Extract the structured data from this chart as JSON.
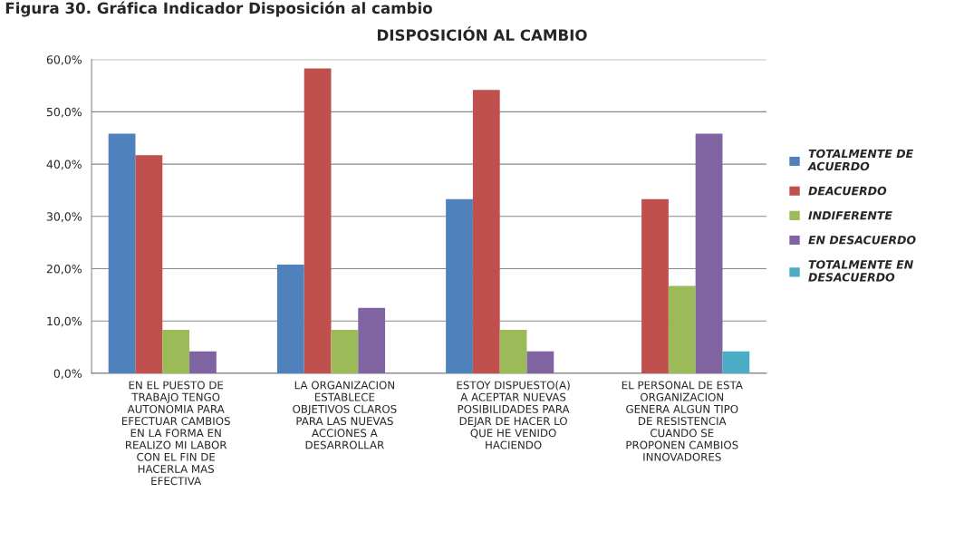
{
  "chart_data": {
    "type": "bar",
    "title": "DISPOSICIÓN AL CAMBIO",
    "annotations": [
      "Figura 30. Gráfica Indicador Disposición al cambio"
    ],
    "categories": [
      "EN EL PUESTO DE\nTRABAJO TENGO\nAUTONOMIA PARA\nEFECTUAR CAMBIOS\nEN LA FORMA EN\nREALIZO MI LABOR\nCON EL FIN DE\nHACERLA MAS\nEFECTIVA",
      "LA ORGANIZACION\nESTABLECE\nOBJETIVOS CLAROS\nPARA LAS NUEVAS\nACCIONES A\nDESARROLLAR",
      "ESTOY DISPUESTO(A)\nA ACEPTAR NUEVAS\nPOSIBILIDADES PARA\nDEJAR DE HACER LO\nQUE HE VENIDO\nHACIENDO",
      "EL PERSONAL DE ESTA\nORGANIZACION\nGENERA ALGUN TIPO\nDE RESISTENCIA\nCUANDO SE\nPROPONEN CAMBIOS\nINNOVADORES"
    ],
    "series": [
      {
        "name": "TOTALMENTE DE\nACUERDO",
        "color": "#4f81bd",
        "values": [
          45.8,
          20.8,
          33.3,
          0
        ]
      },
      {
        "name": "DEACUERDO",
        "color": "#c0504d",
        "values": [
          41.7,
          58.3,
          54.2,
          33.3
        ]
      },
      {
        "name": "INDIFERENTE",
        "color": "#9bbb59",
        "values": [
          8.3,
          8.3,
          8.3,
          16.7
        ]
      },
      {
        "name": "EN DESACUERDO",
        "color": "#8064a2",
        "values": [
          4.2,
          12.5,
          4.2,
          45.8
        ]
      },
      {
        "name": "TOTALMENTE EN\nDESACUERDO",
        "color": "#4bacc6",
        "values": [
          0,
          0,
          0,
          4.2
        ]
      }
    ],
    "ylim": [
      0,
      60
    ],
    "yticks": [
      {
        "value": 0,
        "label": "0,0%"
      },
      {
        "value": 10,
        "label": "10,0%"
      },
      {
        "value": 20,
        "label": "20,0%"
      },
      {
        "value": 30,
        "label": "30,0%"
      },
      {
        "value": 40,
        "label": "40,0%"
      },
      {
        "value": 50,
        "label": "50,0%"
      },
      {
        "value": 60,
        "label": "60,0%"
      }
    ],
    "grid": "y",
    "legend": "right"
  }
}
